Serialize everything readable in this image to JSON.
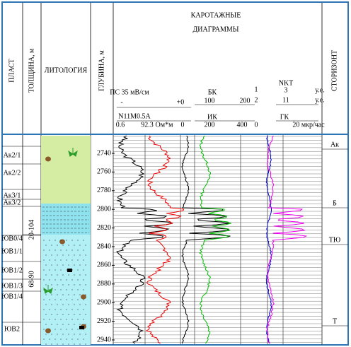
{
  "header": {
    "title": [
      "КАРОТАЖНЫЕ",
      "ДИАГРАММЫ"
    ],
    "columns": [
      "ПЛАСТ",
      "ТОЛЩИНА, м",
      "ЛИТОЛОГИЯ",
      "ГЛУБИНА, м",
      "СТОРИЗОНТ"
    ]
  },
  "scales": [
    "ПС 35 мВ/см",
    "-",
    "+0",
    "N11M0.5A",
    "0.6",
    "92.3",
    "Ом*м",
    "0",
    "БК",
    "100",
    "200",
    "ИК",
    "200",
    "400",
    "1",
    "2",
    "0",
    "NKT",
    "3",
    "11",
    "у.е.",
    "у.е.",
    "ГК",
    "20 мкр/час"
  ],
  "depth": {
    "ticks": [
      2740,
      2760,
      2780,
      2800,
      2820,
      2840,
      2860,
      2880,
      2900,
      2920,
      2940
    ]
  },
  "layers": [
    "Ак2/1",
    "Ак2/2",
    "Ак3/1",
    "Ак3/2",
    "ЮВ0/4",
    "ЮВ1/1",
    "ЮВ1/2",
    "ЮВ1/3",
    "ЮВ1/4",
    "ЮВ2"
  ],
  "thickness": [
    "20-104",
    "68-90"
  ],
  "horizons": [
    "Ак",
    "Б",
    "ТЮ",
    "Т"
  ]
}
